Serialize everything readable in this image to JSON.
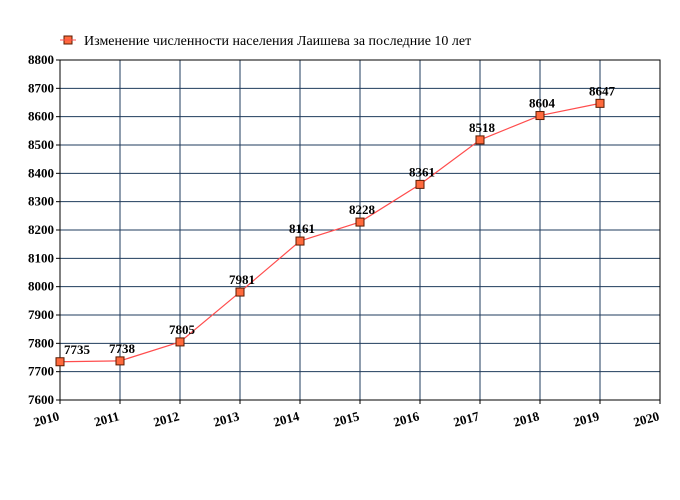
{
  "chart_data": {
    "type": "line",
    "legend": {
      "label": "Изменение численности населения Лаишева за последние 10 лет",
      "position": "top-left"
    },
    "x": [
      2010,
      2011,
      2012,
      2013,
      2014,
      2015,
      2016,
      2017,
      2018,
      2019
    ],
    "x_ticks": [
      "2010",
      "2011",
      "2012",
      "2013",
      "2014",
      "2015",
      "2016",
      "2017",
      "2018",
      "2019",
      "2020"
    ],
    "xlim": [
      2010,
      2020
    ],
    "ylim": [
      7600,
      8800
    ],
    "y_ticks": [
      "7600",
      "7700",
      "7800",
      "7900",
      "8000",
      "8100",
      "8200",
      "8300",
      "8400",
      "8500",
      "8600",
      "8700",
      "8800"
    ],
    "series": [
      {
        "name": "Изменение численности населения Лаишева за последние 10 лет",
        "values": [
          7735,
          7738,
          7805,
          7981,
          8161,
          8228,
          8361,
          8518,
          8604,
          8647
        ],
        "labels": [
          "7735",
          "7738",
          "7805",
          "7981",
          "8161",
          "8228",
          "8361",
          "8518",
          "8604",
          "8647"
        ]
      }
    ],
    "grid": true,
    "colors": {
      "line": "#ff4d4d",
      "marker_fill": "#ff6a3d",
      "marker_stroke": "#5a1a00",
      "grid": "#1f3b5c",
      "frame": "#000000"
    }
  }
}
